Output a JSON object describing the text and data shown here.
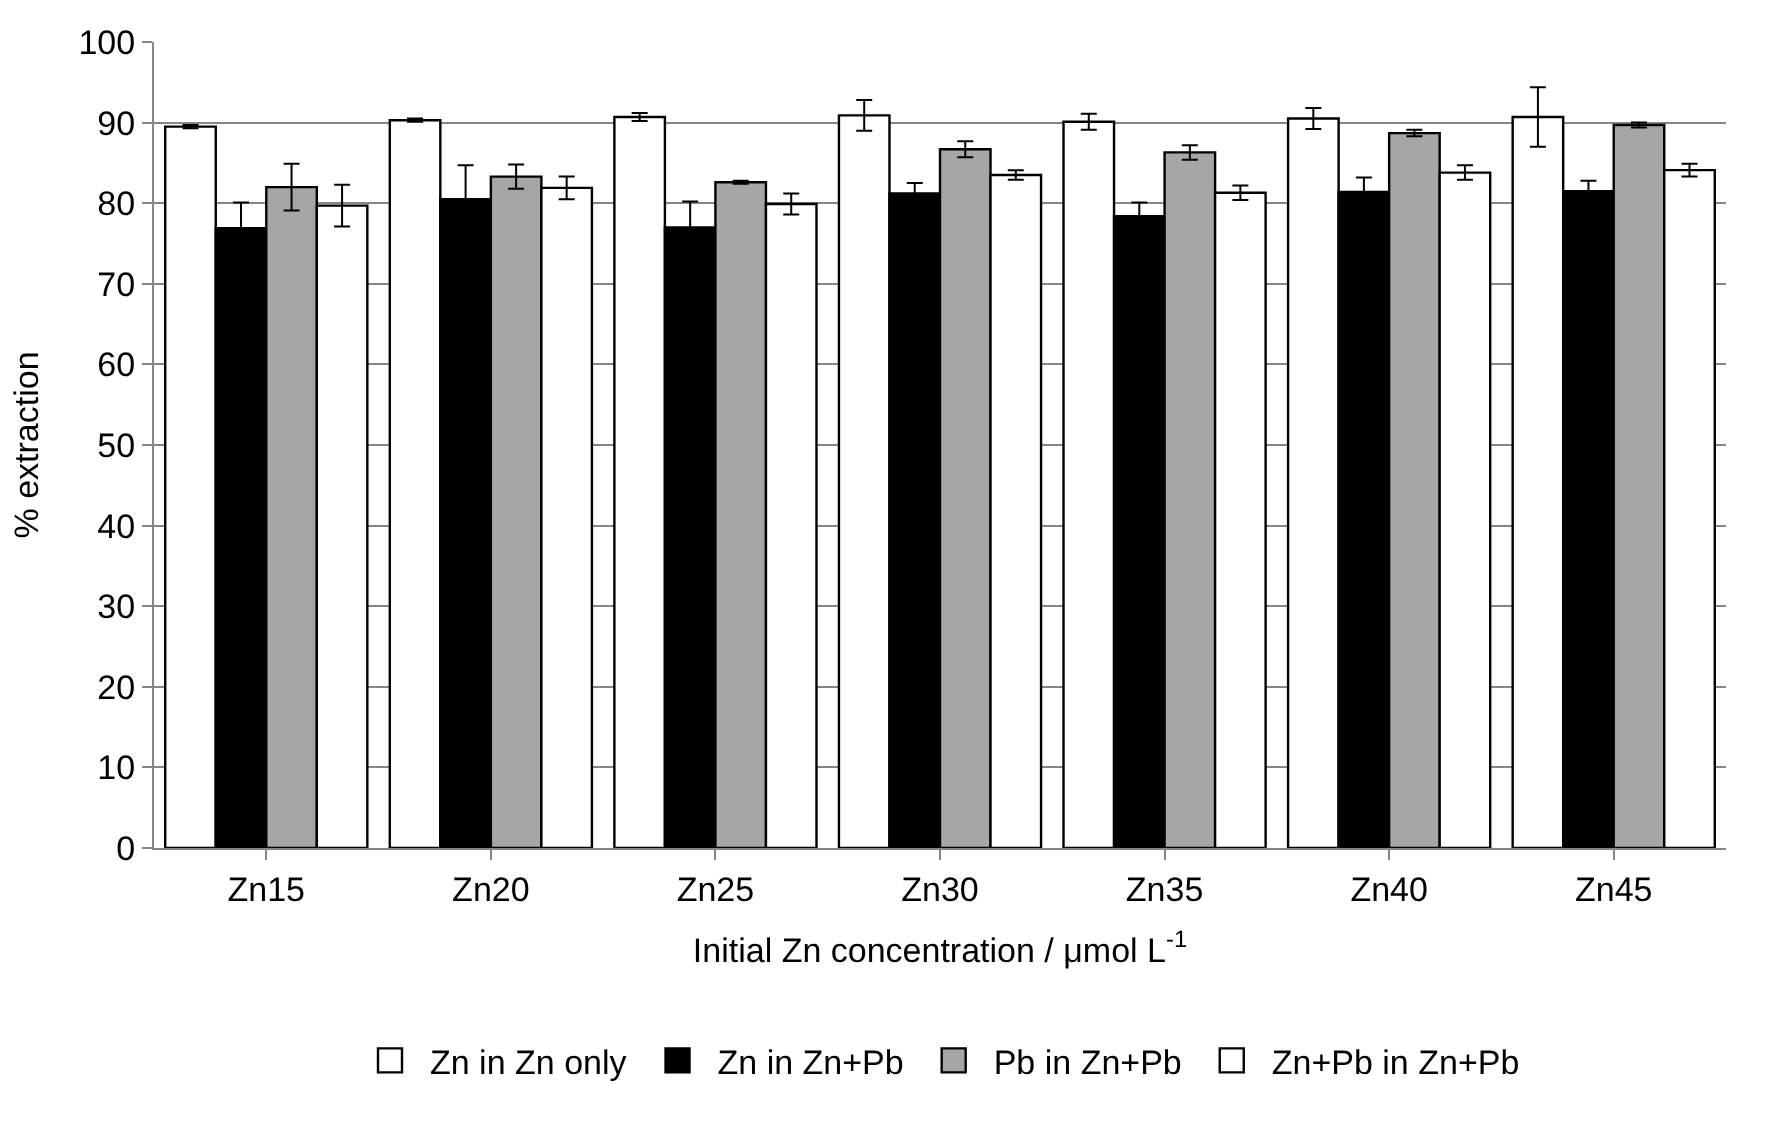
{
  "chart_data": {
    "type": "bar",
    "xlabel": "Initial Zn concentration / μmol L$^{-1}$",
    "ylabel": "% extraction",
    "categories": [
      "Zn15",
      "Zn20",
      "Zn25",
      "Zn30",
      "Zn35",
      "Zn40",
      "Zn45"
    ],
    "series": [
      {
        "name": "Zn in Zn only",
        "color": "#ffffff",
        "values": [
          89.5,
          90.3,
          90.7,
          90.9,
          90.1,
          90.5,
          90.7
        ],
        "errors": [
          0.2,
          0.2,
          0.5,
          1.9,
          1.0,
          1.3,
          3.7
        ]
      },
      {
        "name": "Zn in Zn+Pb",
        "color": "#000000",
        "values": [
          76.9,
          80.5,
          77.0,
          81.2,
          78.4,
          81.4,
          81.5
        ],
        "errors": [
          3.2,
          4.2,
          3.2,
          1.3,
          1.7,
          1.8,
          1.3
        ]
      },
      {
        "name": "Pb in Zn+Pb",
        "color": "#a6a6a6",
        "values": [
          82.0,
          83.3,
          82.6,
          86.7,
          86.3,
          88.7,
          89.7
        ],
        "errors": [
          2.9,
          1.5,
          0.2,
          1.0,
          0.9,
          0.4,
          0.3
        ]
      },
      {
        "name": "Zn+Pb in Zn+Pb",
        "color": "#ffffff",
        "values": [
          79.7,
          81.9,
          79.9,
          83.5,
          81.3,
          83.8,
          84.1
        ],
        "errors": [
          2.6,
          1.4,
          1.3,
          0.6,
          0.9,
          0.9,
          0.8
        ]
      }
    ],
    "ylim": [
      0,
      100
    ],
    "yticks": [
      0,
      10,
      20,
      30,
      40,
      50,
      60,
      70,
      80,
      90,
      100
    ],
    "grid": "y",
    "legend": "bottom"
  }
}
